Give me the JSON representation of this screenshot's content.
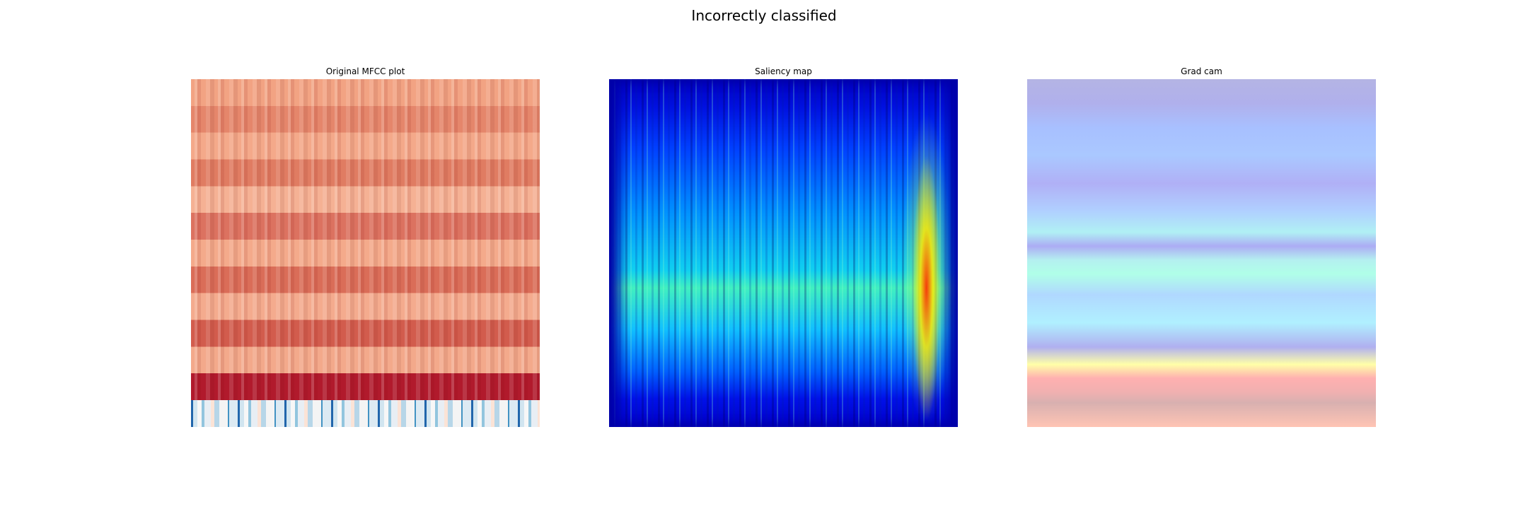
{
  "header": {
    "title": "Incorrectly classified"
  },
  "panels": [
    {
      "title": "Original MFCC plot"
    },
    {
      "title": "Saliency map"
    },
    {
      "title": "Grad cam"
    }
  ]
}
